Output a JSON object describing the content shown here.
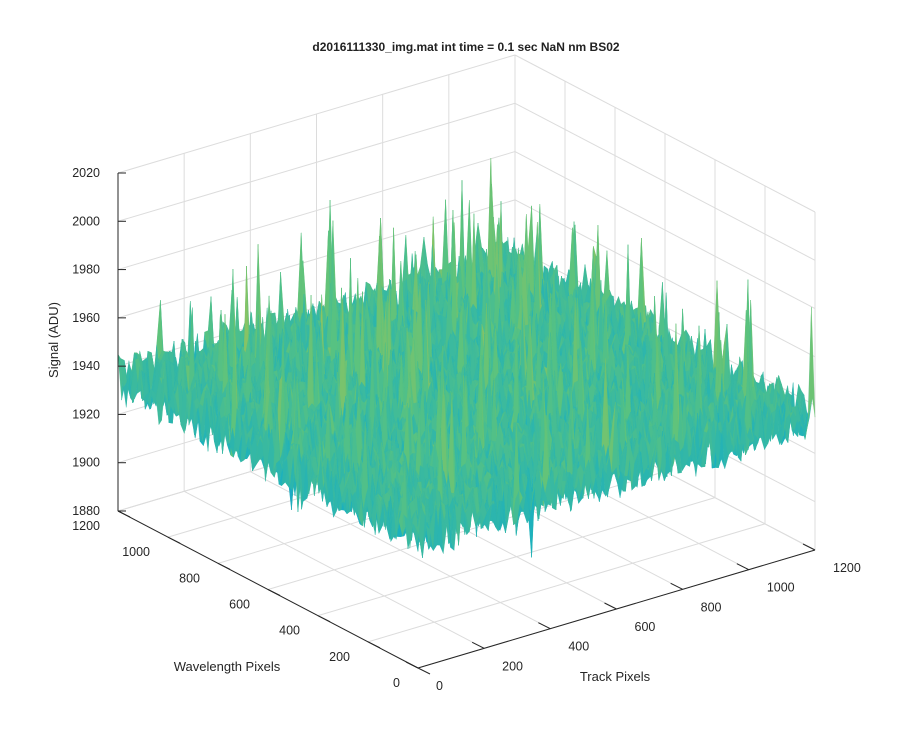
{
  "chart_data": {
    "type": "surface",
    "title": "d2016111330_img.mat int time = 0.1 sec  NaN nm BS02",
    "xlabel": "Track Pixels",
    "ylabel": "Wavelength Pixels",
    "zlabel": "Signal (ADU)",
    "xlim": [
      0,
      1200
    ],
    "ylim": [
      0,
      1200
    ],
    "zlim": [
      1880,
      2020
    ],
    "x_ticks": [
      "0",
      "200",
      "400",
      "600",
      "800",
      "1000",
      "1200"
    ],
    "y_ticks": [
      "0",
      "200",
      "400",
      "600",
      "800",
      "1000",
      "1200"
    ],
    "z_ticks": [
      "1880",
      "1900",
      "1920",
      "1940",
      "1960",
      "1980",
      "2000",
      "2020"
    ],
    "grid": true,
    "colormap": [
      "#3e26a8",
      "#2f89e0",
      "#1ab0c0",
      "#5bc37e",
      "#b5c44b",
      "#f0c030",
      "#f9fb15"
    ],
    "surface_level_mean": 1935,
    "surface_level_min": 1890,
    "surface_level_max": 2000
  }
}
